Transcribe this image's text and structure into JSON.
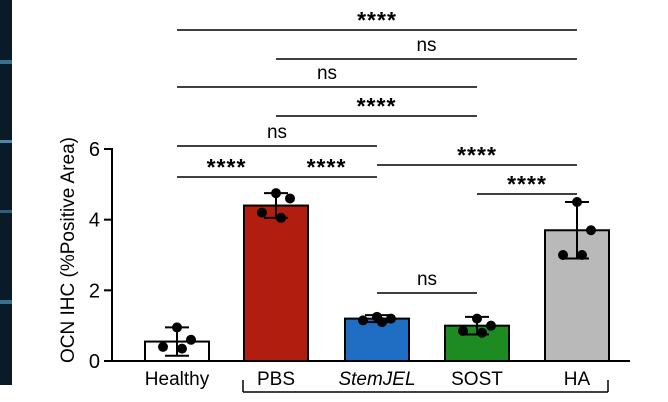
{
  "chart_data": {
    "type": "bar",
    "title": "",
    "xlabel": "",
    "ylabel": "OCN IHC (%Positive Area)",
    "ylim": [
      0,
      6
    ],
    "yticks": [
      0,
      2,
      4,
      6
    ],
    "grid": false,
    "categories": [
      "Healthy",
      "PBS",
      "StemJEL",
      "SOST",
      "HA"
    ],
    "values": [
      0.55,
      4.4,
      1.2,
      1.0,
      3.7
    ],
    "errors": [
      0.4,
      0.35,
      0.1,
      0.25,
      0.8
    ],
    "colors": [
      "#ffffff",
      "#b11d0f",
      "#1f6ec4",
      "#1d8a22",
      "#b9b9b9"
    ],
    "points": [
      [
        0.95,
        0.6,
        0.4,
        0.35
      ],
      [
        4.75,
        4.6,
        4.2,
        4.05
      ],
      [
        1.25,
        1.2,
        1.15,
        1.1
      ],
      [
        1.2,
        1.0,
        0.85,
        0.8
      ],
      [
        4.5,
        3.7,
        3.0,
        3.0
      ]
    ],
    "significance": [
      {
        "from": 0,
        "to": 4,
        "label": "****"
      },
      {
        "from": 1,
        "to": 4,
        "label": "ns"
      },
      {
        "from": 0,
        "to": 3,
        "label": "ns"
      },
      {
        "from": 1,
        "to": 3,
        "label": "****"
      },
      {
        "from": 0,
        "to": 2,
        "label": "ns"
      },
      {
        "from": 0,
        "to": 1,
        "label": "****"
      },
      {
        "from": 1,
        "to": 2,
        "label": "****"
      },
      {
        "from": 2,
        "to": 4,
        "label": "****"
      },
      {
        "from": 3,
        "to": 4,
        "label": "****"
      },
      {
        "from": 2,
        "to": 3,
        "label": "ns"
      }
    ]
  }
}
